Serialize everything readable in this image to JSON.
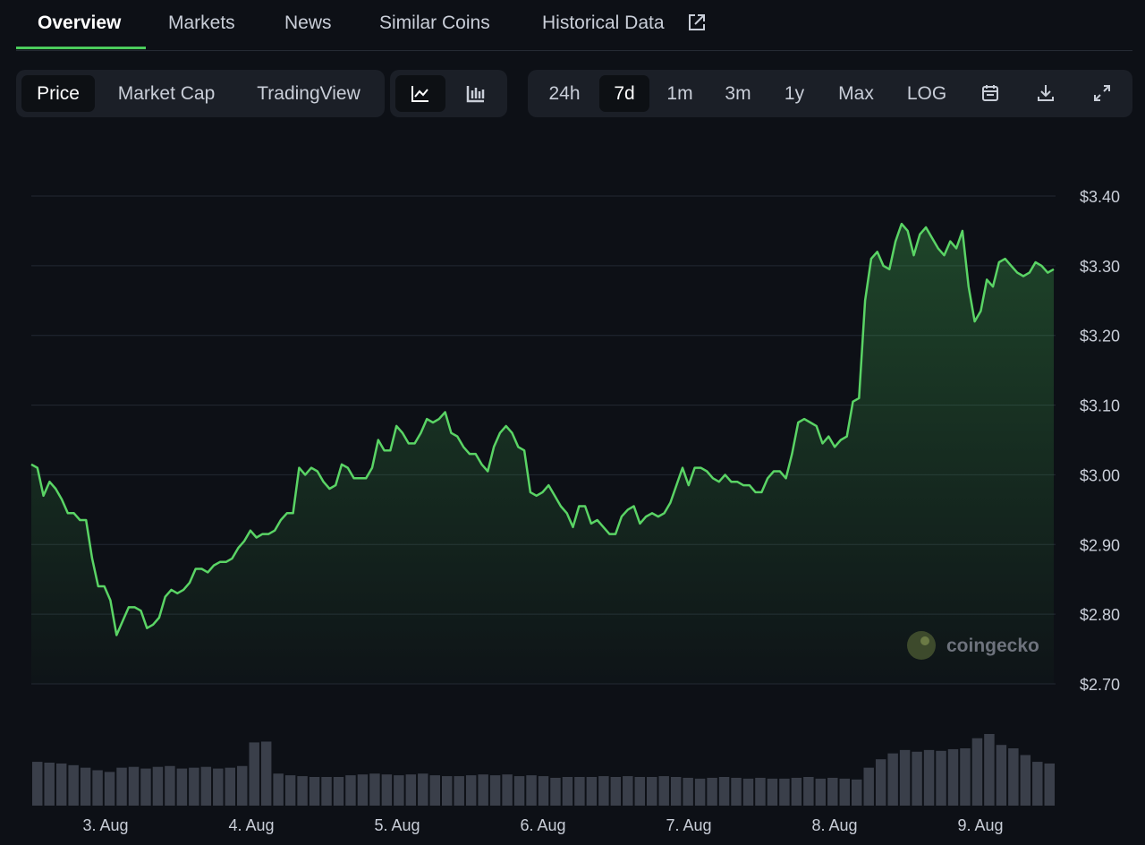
{
  "tabs": [
    "Overview",
    "Markets",
    "News",
    "Similar Coins",
    "Historical Data"
  ],
  "chart_modes": [
    "Price",
    "Market Cap",
    "TradingView"
  ],
  "ranges": [
    "24h",
    "7d",
    "1m",
    "3m",
    "1y",
    "Max",
    "LOG"
  ],
  "watermark": "coingecko",
  "chart_data": {
    "type": "line",
    "x_labels": [
      "3. Aug",
      "4. Aug",
      "5. Aug",
      "6. Aug",
      "7. Aug",
      "8. Aug",
      "9. Aug"
    ],
    "series": [
      {
        "name": "Price",
        "color": "#5ad465",
        "values": [
          3.015,
          3.01,
          2.97,
          2.99,
          2.98,
          2.965,
          2.945,
          2.945,
          2.935,
          2.935,
          2.88,
          2.84,
          2.84,
          2.82,
          2.77,
          2.79,
          2.81,
          2.81,
          2.805,
          2.78,
          2.785,
          2.795,
          2.825,
          2.835,
          2.83,
          2.835,
          2.845,
          2.865,
          2.865,
          2.86,
          2.87,
          2.875,
          2.875,
          2.88,
          2.895,
          2.905,
          2.92,
          2.91,
          2.915,
          2.915,
          2.92,
          2.935,
          2.945,
          2.945,
          3.01,
          3.0,
          3.01,
          3.005,
          2.99,
          2.98,
          2.985,
          3.015,
          3.01,
          2.995,
          2.995,
          2.995,
          3.01,
          3.05,
          3.035,
          3.035,
          3.07,
          3.06,
          3.045,
          3.045,
          3.06,
          3.08,
          3.075,
          3.08,
          3.09,
          3.06,
          3.055,
          3.04,
          3.03,
          3.03,
          3.015,
          3.005,
          3.04,
          3.06,
          3.07,
          3.06,
          3.04,
          3.035,
          2.975,
          2.97,
          2.975,
          2.985,
          2.97,
          2.955,
          2.945,
          2.925,
          2.955,
          2.955,
          2.93,
          2.935,
          2.925,
          2.915,
          2.915,
          2.94,
          2.95,
          2.955,
          2.93,
          2.94,
          2.945,
          2.94,
          2.945,
          2.96,
          2.985,
          3.01,
          2.985,
          3.01,
          3.01,
          3.005,
          2.995,
          2.99,
          3.0,
          2.99,
          2.99,
          2.985,
          2.985,
          2.975,
          2.975,
          2.995,
          3.005,
          3.005,
          2.995,
          3.03,
          3.075,
          3.08,
          3.075,
          3.07,
          3.045,
          3.055,
          3.04,
          3.05,
          3.055,
          3.105,
          3.11,
          3.25,
          3.31,
          3.32,
          3.3,
          3.295,
          3.335,
          3.36,
          3.35,
          3.315,
          3.345,
          3.355,
          3.34,
          3.325,
          3.315,
          3.335,
          3.325,
          3.35,
          3.27,
          3.22,
          3.235,
          3.28,
          3.27,
          3.305,
          3.31,
          3.3,
          3.29,
          3.285,
          3.29,
          3.305,
          3.3,
          3.29,
          3.295
        ]
      },
      {
        "name": "Volume",
        "color": "#3a3f4a",
        "values": [
          52,
          51,
          50,
          48,
          45,
          42,
          40,
          45,
          46,
          44,
          46,
          47,
          44,
          45,
          46,
          44,
          45,
          47,
          75,
          76,
          38,
          36,
          35,
          34,
          34,
          34,
          36,
          37,
          38,
          37,
          36,
          37,
          38,
          36,
          35,
          35,
          36,
          37,
          36,
          37,
          35,
          36,
          35,
          33,
          34,
          34,
          34,
          35,
          34,
          35,
          34,
          34,
          35,
          34,
          33,
          32,
          33,
          34,
          33,
          32,
          33,
          32,
          32,
          33,
          34,
          32,
          33,
          32,
          31,
          45,
          55,
          62,
          66,
          64,
          66,
          65,
          67,
          68,
          80,
          85,
          72,
          68,
          60,
          52,
          50
        ]
      }
    ],
    "ylim": [
      2.7,
      3.4
    ],
    "yticks": [
      {
        "value": 3.4,
        "label": "$3.40"
      },
      {
        "value": 3.3,
        "label": "$3.30"
      },
      {
        "value": 3.2,
        "label": "$3.20"
      },
      {
        "value": 3.1,
        "label": "$3.10"
      },
      {
        "value": 3.0,
        "label": "$3.00"
      },
      {
        "value": 2.9,
        "label": "$2.90"
      },
      {
        "value": 2.8,
        "label": "$2.80"
      },
      {
        "value": 2.7,
        "label": "$2.70"
      }
    ],
    "grid": true
  }
}
